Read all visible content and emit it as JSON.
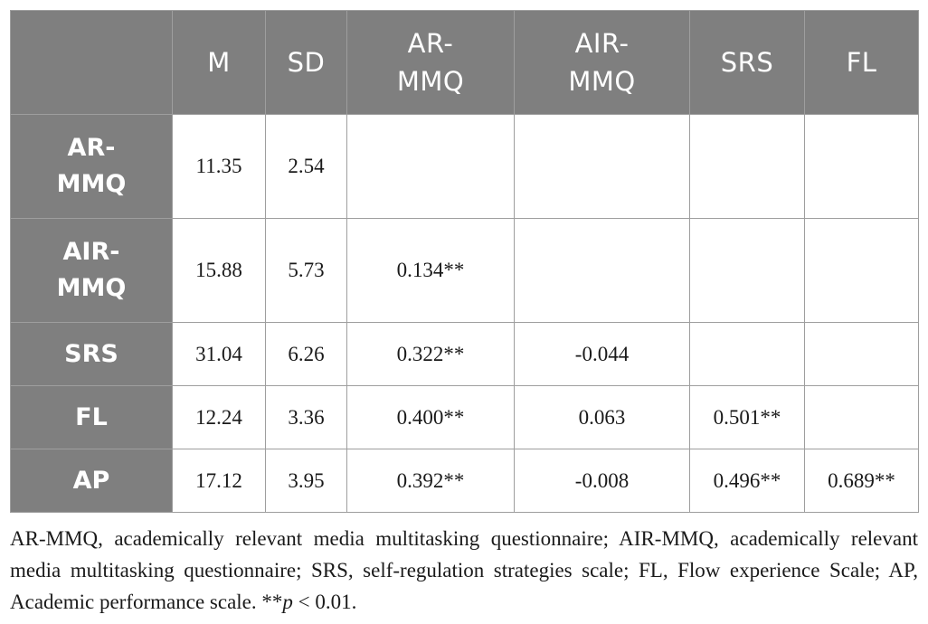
{
  "table": {
    "header": {
      "corner": "",
      "columns": [
        "M",
        "SD",
        "AR-\nMMQ",
        "AIR-\nMMQ",
        "SRS",
        "FL"
      ]
    },
    "rows": [
      {
        "label": "AR-\nMMQ",
        "cells": [
          "11.35",
          "2.54",
          "",
          "",
          "",
          ""
        ]
      },
      {
        "label": "AIR-\nMMQ",
        "cells": [
          "15.88",
          "5.73",
          "0.134**",
          "",
          "",
          ""
        ]
      },
      {
        "label": "SRS",
        "cells": [
          "31.04",
          "6.26",
          "0.322**",
          "-0.044",
          "",
          ""
        ]
      },
      {
        "label": "FL",
        "cells": [
          "12.24",
          "3.36",
          "0.400**",
          "0.063",
          "0.501**",
          ""
        ]
      },
      {
        "label": "AP",
        "cells": [
          "17.12",
          "3.95",
          "0.392**",
          "-0.008",
          "0.496**",
          "0.689**"
        ]
      }
    ]
  },
  "footnote": {
    "text": "AR-MMQ, academically relevant media multitasking questionnaire; AIR-MMQ, academically relevant media multitasking questionnaire; SRS, self-regulation strategies scale; FL, Flow experience Scale; AP, Academic performance scale. **",
    "p_symbol": "p",
    "p_rest": " < 0.01."
  }
}
